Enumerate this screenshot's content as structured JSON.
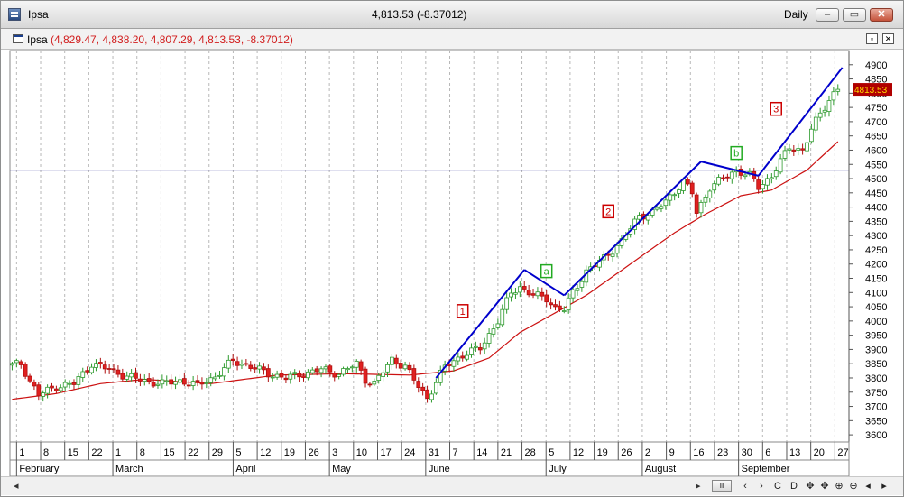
{
  "window": {
    "title": "Ipsa",
    "center_text": "4,813.53 (-8.37012)",
    "period": "Daily"
  },
  "subheader": {
    "name": "Ipsa",
    "values": "(4,829.47, 4,838.20, 4,807.29, 4,813.53, -8.37012)"
  },
  "colors": {
    "up_body": "#ffffff",
    "up_edge": "#2e9a2e",
    "down_body": "#e02020",
    "ma_line": "#cc1111",
    "wave_line": "#0000cc",
    "horizontal_line": "#000080",
    "grid": "#b8b8b8",
    "price_tag_bg": "#b00000"
  },
  "chart_data": {
    "type": "candlestick",
    "symbol": "Ipsa",
    "ylim": [
      3575,
      4950
    ],
    "y_ticks": [
      3600,
      3650,
      3700,
      3750,
      3800,
      3850,
      3900,
      3950,
      4000,
      4050,
      4100,
      4150,
      4200,
      4250,
      4300,
      4350,
      4400,
      4450,
      4500,
      4550,
      4600,
      4650,
      4700,
      4750,
      4800,
      4850,
      4900
    ],
    "x_tick_labels": [
      "1",
      "8",
      "15",
      "22",
      "1",
      "8",
      "15",
      "22",
      "29",
      "5",
      "12",
      "19",
      "26",
      "3",
      "10",
      "17",
      "24",
      "31",
      "7",
      "14",
      "21",
      "28",
      "5",
      "12",
      "19",
      "26",
      "2",
      "9",
      "16",
      "23",
      "30",
      "6",
      "13",
      "20",
      "27"
    ],
    "month_labels": [
      "February",
      "March",
      "April",
      "May",
      "June",
      "July",
      "August",
      "September"
    ],
    "last_price": "4813.53",
    "horizontal_line_value": 4530,
    "ohlc_anchor_closes": [
      {
        "bar": 0,
        "close": 3845
      },
      {
        "bar": 2,
        "close": 3850
      },
      {
        "bar": 4,
        "close": 3790
      },
      {
        "bar": 6,
        "close": 3740
      },
      {
        "bar": 10,
        "close": 3770
      },
      {
        "bar": 14,
        "close": 3780
      },
      {
        "bar": 18,
        "close": 3850
      },
      {
        "bar": 22,
        "close": 3830
      },
      {
        "bar": 26,
        "close": 3805
      },
      {
        "bar": 30,
        "close": 3790
      },
      {
        "bar": 34,
        "close": 3780
      },
      {
        "bar": 38,
        "close": 3790
      },
      {
        "bar": 42,
        "close": 3775
      },
      {
        "bar": 46,
        "close": 3805
      },
      {
        "bar": 50,
        "close": 3860
      },
      {
        "bar": 54,
        "close": 3840
      },
      {
        "bar": 58,
        "close": 3815
      },
      {
        "bar": 62,
        "close": 3800
      },
      {
        "bar": 66,
        "close": 3815
      },
      {
        "bar": 70,
        "close": 3830
      },
      {
        "bar": 74,
        "close": 3815
      },
      {
        "bar": 78,
        "close": 3850
      },
      {
        "bar": 80,
        "close": 3795
      },
      {
        "bar": 82,
        "close": 3780
      },
      {
        "bar": 86,
        "close": 3865
      },
      {
        "bar": 89,
        "close": 3840
      },
      {
        "bar": 92,
        "close": 3770
      },
      {
        "bar": 94,
        "close": 3730
      },
      {
        "bar": 98,
        "close": 3840
      },
      {
        "bar": 102,
        "close": 3880
      },
      {
        "bar": 106,
        "close": 3905
      },
      {
        "bar": 110,
        "close": 4000
      },
      {
        "bar": 113,
        "close": 4100
      },
      {
        "bar": 115,
        "close": 4120
      },
      {
        "bar": 118,
        "close": 4090
      },
      {
        "bar": 121,
        "close": 4080
      },
      {
        "bar": 123,
        "close": 4045
      },
      {
        "bar": 125,
        "close": 4040
      },
      {
        "bar": 127,
        "close": 4100
      },
      {
        "bar": 130,
        "close": 4175
      },
      {
        "bar": 134,
        "close": 4220
      },
      {
        "bar": 138,
        "close": 4280
      },
      {
        "bar": 142,
        "close": 4370
      },
      {
        "bar": 145,
        "close": 4380
      },
      {
        "bar": 148,
        "close": 4420
      },
      {
        "bar": 152,
        "close": 4490
      },
      {
        "bar": 154,
        "close": 4450
      },
      {
        "bar": 155,
        "close": 4380
      },
      {
        "bar": 158,
        "close": 4470
      },
      {
        "bar": 162,
        "close": 4510
      },
      {
        "bar": 164,
        "close": 4530
      },
      {
        "bar": 167,
        "close": 4510
      },
      {
        "bar": 169,
        "close": 4470
      },
      {
        "bar": 172,
        "close": 4510
      },
      {
        "bar": 176,
        "close": 4610
      },
      {
        "bar": 179,
        "close": 4600
      },
      {
        "bar": 181,
        "close": 4670
      },
      {
        "bar": 183,
        "close": 4730
      },
      {
        "bar": 186,
        "close": 4800
      },
      {
        "bar": 187,
        "close": 4813.53
      }
    ],
    "moving_average_anchors": [
      {
        "bar": 0,
        "value": 3725
      },
      {
        "bar": 10,
        "value": 3745
      },
      {
        "bar": 20,
        "value": 3780
      },
      {
        "bar": 30,
        "value": 3795
      },
      {
        "bar": 45,
        "value": 3780
      },
      {
        "bar": 60,
        "value": 3810
      },
      {
        "bar": 75,
        "value": 3815
      },
      {
        "bar": 90,
        "value": 3810
      },
      {
        "bar": 100,
        "value": 3825
      },
      {
        "bar": 108,
        "value": 3870
      },
      {
        "bar": 115,
        "value": 3960
      },
      {
        "bar": 122,
        "value": 4020
      },
      {
        "bar": 130,
        "value": 4090
      },
      {
        "bar": 140,
        "value": 4200
      },
      {
        "bar": 150,
        "value": 4310
      },
      {
        "bar": 157,
        "value": 4375
      },
      {
        "bar": 165,
        "value": 4440
      },
      {
        "bar": 172,
        "value": 4460
      },
      {
        "bar": 180,
        "value": 4530
      },
      {
        "bar": 187,
        "value": 4630
      }
    ],
    "wave_lines": [
      {
        "from": {
          "bar": 96,
          "price": 3800
        },
        "to": {
          "bar": 116,
          "price": 4180
        }
      },
      {
        "from": {
          "bar": 116,
          "price": 4180
        },
        "to": {
          "bar": 125,
          "price": 4090
        }
      },
      {
        "from": {
          "bar": 125,
          "price": 4090
        },
        "to": {
          "bar": 156,
          "price": 4560
        }
      },
      {
        "from": {
          "bar": 156,
          "price": 4560
        },
        "to": {
          "bar": 169,
          "price": 4510
        }
      },
      {
        "from": {
          "bar": 169,
          "price": 4510
        },
        "to": {
          "bar": 188,
          "price": 4890
        }
      }
    ],
    "wave_labels": [
      {
        "text": "1",
        "kind": "impulse",
        "bar": 102,
        "price": 4035
      },
      {
        "text": "a",
        "kind": "correction",
        "bar": 121,
        "price": 4175
      },
      {
        "text": "2",
        "kind": "impulse",
        "bar": 135,
        "price": 4385
      },
      {
        "text": "b",
        "kind": "correction",
        "bar": 164,
        "price": 4590
      },
      {
        "text": "3",
        "kind": "impulse",
        "bar": 173,
        "price": 4745
      }
    ]
  },
  "toolbar": {
    "buttons": [
      "Ⅲ",
      "‹",
      "›",
      "C",
      "D",
      "✥",
      "✥",
      "⊕",
      "⊖",
      "◂",
      "▸"
    ]
  }
}
